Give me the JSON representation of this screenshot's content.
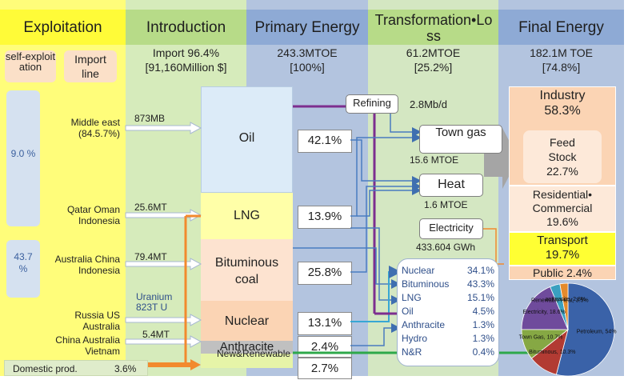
{
  "headers": {
    "exploitation": "Exploitation",
    "introduction": "Introduction",
    "primary": "Primary Energy",
    "transformation": "Transformation•Loss",
    "final": "Final Energy"
  },
  "subheaders": {
    "self_exploitation": "self-exploitation",
    "import_line": "Import line"
  },
  "summary": {
    "introduction_line1": "Import 96.4%",
    "introduction_line2": "[91,160Million $]",
    "primary_line1": "243.3MTOE",
    "primary_line2": "[100%]",
    "transformation_line1": "61.2MTOE",
    "transformation_line2": "[25.2%]",
    "final_line1": "182.1M TOE",
    "final_line2": "[74.8%]"
  },
  "exploitation": {
    "self_pct_1": "9.0 %",
    "self_pct_2": "43.7 %",
    "sources": [
      {
        "region": "Middle east (84.5.7%)",
        "amount": "873MB"
      },
      {
        "region": "Qatar Oman Indonesia",
        "amount": "25.6MT"
      },
      {
        "region": "Australia China Indonesia",
        "amount": "79.4MT"
      },
      {
        "region": "Russia US Australia",
        "amount": ""
      },
      {
        "region": "China Australia Vietnam",
        "amount": "5.4MT"
      }
    ],
    "uranium": "Uranium 823T U",
    "domestic_label": "Domestic prod.",
    "domestic_pct": "3.6%"
  },
  "primary_energy": [
    {
      "name": "Oil",
      "pct": "42.1%"
    },
    {
      "name": "LNG",
      "pct": "13.9%"
    },
    {
      "name": "Bituminous coal",
      "pct": "25.8%"
    },
    {
      "name": "Nuclear",
      "pct": "13.1%"
    },
    {
      "name": "Anthracite",
      "pct": "2.4%"
    },
    {
      "name": "New&Renewable",
      "pct": "2.7%"
    }
  ],
  "transformation": {
    "refining": "Refining",
    "refining_value": "2.8Mb/d",
    "town_gas": "Town gas",
    "town_gas_value": "15.6 MTOE",
    "heat": "Heat",
    "heat_value": "1.6 MTOE",
    "electricity": "Electricity",
    "electricity_value": "433.604 GWh",
    "electricity_mix": [
      {
        "name": "Nuclear",
        "pct": "34.1%"
      },
      {
        "name": "Bituminous",
        "pct": "43.3%"
      },
      {
        "name": "LNG",
        "pct": "15.1%"
      },
      {
        "name": "Oil",
        "pct": "4.5%"
      },
      {
        "name": "Anthracite",
        "pct": "1.3%"
      },
      {
        "name": "Hydro",
        "pct": "1.3%"
      },
      {
        "name": "N&R",
        "pct": "0.4%"
      }
    ]
  },
  "final_energy": {
    "industry": "Industry",
    "industry_pct": "58.3%",
    "feedstock": "Feed Stock",
    "feedstock_pct": "22.7%",
    "residential": "Residential• Commercial",
    "residential_pct": "19.6%",
    "transport": "Transport",
    "transport_pct": "19.7%",
    "public": "Public 2.4%"
  },
  "chart_data": {
    "type": "pie",
    "slices": [
      {
        "label": "Petroleum",
        "pct": "54%",
        "value": 54,
        "color": "#3a62a8"
      },
      {
        "label": "Bituminous",
        "pct": "10.3%",
        "value": 10.3,
        "color": "#b23b33"
      },
      {
        "label": "Town Gas",
        "pct": "10.7%",
        "value": 10.7,
        "color": "#86a844"
      },
      {
        "label": "Electricity",
        "pct": "18.6%",
        "value": 18.6,
        "color": "#6f4b9c"
      },
      {
        "label": "Renewable Heat",
        "pct": "3.5%",
        "value": 3.5,
        "color": "#3aa0c0"
      },
      {
        "label": "anthracite",
        "pct": "2.8%",
        "value": 2.8,
        "color": "#e48a2c"
      }
    ],
    "label_text": {
      "Petroleum": "Petroleum, 54%",
      "Bituminous": "Bituminous, 10.3%",
      "Town Gas": "Town Gas, 10.7%",
      "Electricity": "Electricity, 18.6%",
      "Renewable Heat": "Renewable Heat, 3.5%",
      "anthracite": "anthracite, 2.8%"
    }
  },
  "colors": {
    "exploitation": "#fffd7a",
    "introduction": "#d8ecbe",
    "primary": "#b6c6e0",
    "transformation": "#d5e8c4",
    "final": "#b6c6e0",
    "oil_line": "#7d2e8f",
    "lng_line": "#f28a2e",
    "electric_line": "#38a7d4",
    "green_line": "#2ea84a"
  }
}
